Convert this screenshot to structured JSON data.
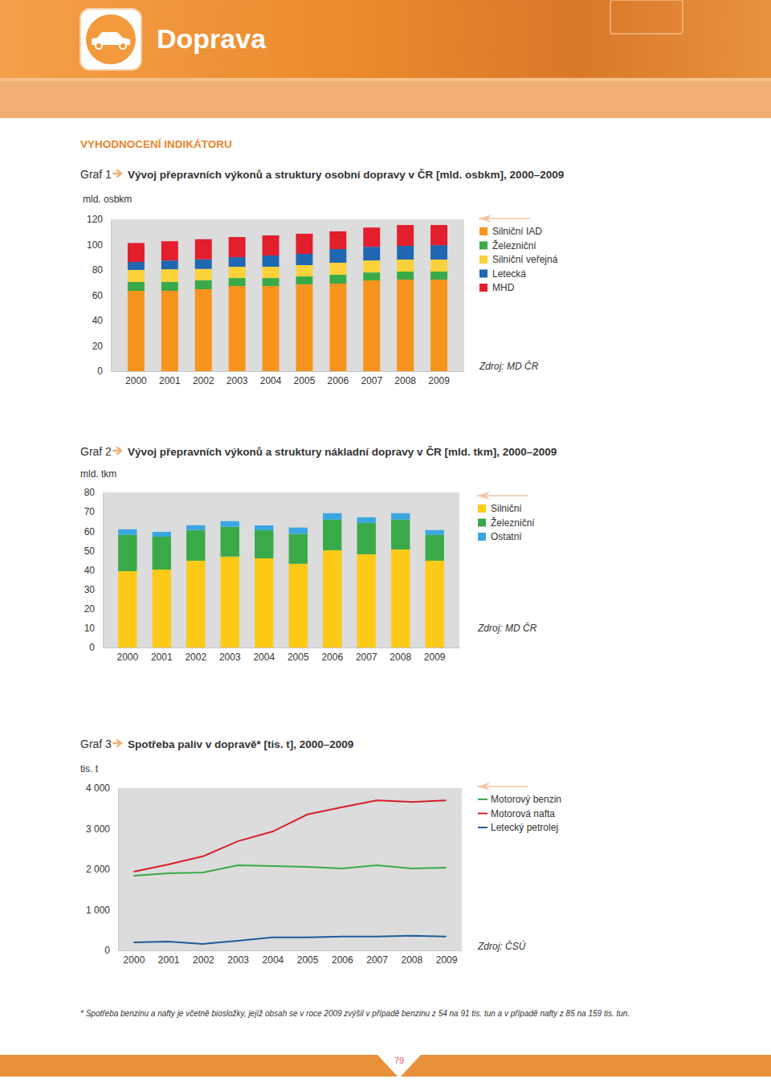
{
  "page": {
    "header": "Doprava",
    "section": "VYHODNOCENÍ INDIKÁTORU",
    "footnote": "* Spotřeba benzinu a nafty je včetně biosložky, jejíž obsah se v roce 2009 zvýšil v případě benzinu z 54 na 91 tis. tun a v případě nafty z 85 na 159 tis. tun.",
    "page_number": "79"
  },
  "chart_data": [
    {
      "type": "bar",
      "stacked": true,
      "label": "Graf 1",
      "title": "Vývoj přepravních výkonů a struktury osobní dopravy v ČR [mld. osbkm], 2000–2009",
      "ylabel": "mld. osbkm",
      "source": "Zdroj: MD ČR",
      "categories": [
        "2000",
        "2001",
        "2002",
        "2003",
        "2004",
        "2005",
        "2006",
        "2007",
        "2008",
        "2009"
      ],
      "series": [
        {
          "name": "Silniční IAD",
          "color": "#f7941d",
          "values": [
            63.5,
            63.5,
            64.8,
            67.3,
            67.3,
            68.6,
            69.2,
            71.7,
            72.4,
            72.4
          ]
        },
        {
          "name": "Železniční",
          "color": "#3aaa49",
          "values": [
            7.0,
            7.0,
            7.0,
            6.3,
            6.3,
            6.3,
            7.0,
            6.3,
            6.3,
            6.3
          ]
        },
        {
          "name": "Silniční veřejná",
          "color": "#fbd23a",
          "values": [
            9.5,
            10.0,
            9.0,
            8.9,
            8.9,
            8.9,
            9.5,
            9.5,
            9.5,
            9.5
          ]
        },
        {
          "name": "Letecká",
          "color": "#1f67b1",
          "values": [
            6.3,
            7.0,
            7.6,
            7.6,
            8.9,
            8.9,
            10.8,
            10.8,
            10.8,
            11.4
          ]
        },
        {
          "name": "MHD",
          "color": "#e31e2d",
          "values": [
            15.0,
            15.2,
            15.9,
            15.9,
            15.9,
            15.9,
            14.0,
            15.2,
            16.5,
            15.9
          ]
        }
      ],
      "ylim": [
        0,
        120
      ],
      "yticks": [
        0,
        20,
        40,
        60,
        80,
        100,
        120
      ],
      "grid": false,
      "legend": "right"
    },
    {
      "type": "bar",
      "stacked": true,
      "label": "Graf 2",
      "title": "Vývoj přepravních výkonů a struktury nákladní dopravy v ČR [mld. tkm], 2000–2009",
      "ylabel": "mld. tkm",
      "source": "Zdroj: MD ČR",
      "categories": [
        "2000",
        "2001",
        "2002",
        "2003",
        "2004",
        "2005",
        "2006",
        "2007",
        "2008",
        "2009"
      ],
      "series": [
        {
          "name": "Silniční",
          "color": "#fdcb17",
          "values": [
            39.4,
            40.2,
            44.8,
            46.9,
            46.0,
            43.2,
            50.2,
            48.1,
            50.6,
            44.8
          ]
        },
        {
          "name": "Železniční",
          "color": "#3aaa49",
          "values": [
            18.7,
            17.0,
            15.8,
            15.4,
            14.5,
            15.4,
            15.8,
            16.2,
            15.4,
            13.3
          ]
        },
        {
          "name": "Ostatní",
          "color": "#3aa7e0",
          "values": [
            2.9,
            2.5,
            2.5,
            2.9,
            2.5,
            3.3,
            3.3,
            2.9,
            3.3,
            2.5
          ]
        }
      ],
      "ylim": [
        0,
        80
      ],
      "yticks": [
        0,
        10,
        20,
        30,
        40,
        50,
        60,
        70,
        80
      ],
      "grid": false,
      "legend": "right"
    },
    {
      "type": "line",
      "label": "Graf 3",
      "title": "Spotřeba paliv v dopravě* [tis. t], 2000–2009",
      "ylabel": "tis. t",
      "source": "Zdroj: ČSÚ",
      "categories": [
        "2000",
        "2001",
        "2002",
        "2003",
        "2004",
        "2005",
        "2006",
        "2007",
        "2008",
        "2009"
      ],
      "series": [
        {
          "name": "Motorový benzin",
          "color": "#3aaa49",
          "values": [
            1840,
            1900,
            1920,
            2100,
            2080,
            2060,
            2020,
            2100,
            2020,
            2040
          ]
        },
        {
          "name": "Motorová nafta",
          "color": "#d7202b",
          "values": [
            1940,
            2120,
            2320,
            2690,
            2930,
            3350,
            3530,
            3700,
            3660,
            3700
          ]
        },
        {
          "name": "Letecký petrolej",
          "color": "#1f5c99",
          "values": [
            200,
            220,
            160,
            240,
            320,
            320,
            340,
            340,
            360,
            340
          ]
        }
      ],
      "ylim": [
        0,
        4000
      ],
      "yticks": [
        0,
        {
          "value": 1000,
          "label": "1 000"
        },
        {
          "value": 2000,
          "label": "2 000"
        },
        {
          "value": 3000,
          "label": "3 000"
        },
        {
          "value": 4000,
          "label": "4 000"
        }
      ],
      "grid": false,
      "legend": "right"
    }
  ]
}
